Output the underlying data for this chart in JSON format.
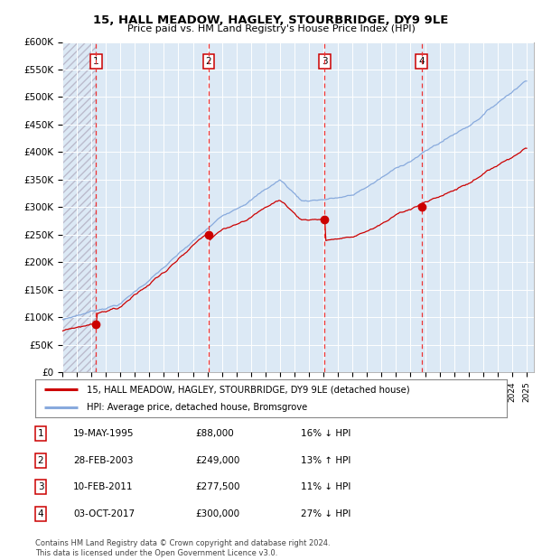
{
  "title": "15, HALL MEADOW, HAGLEY, STOURBRIDGE, DY9 9LE",
  "subtitle": "Price paid vs. HM Land Registry's House Price Index (HPI)",
  "plot_bg_color": "#dce9f5",
  "ylim": [
    0,
    600000
  ],
  "yticks": [
    0,
    50000,
    100000,
    150000,
    200000,
    250000,
    300000,
    350000,
    400000,
    450000,
    500000,
    550000,
    600000
  ],
  "ytick_labels": [
    "£0",
    "£50K",
    "£100K",
    "£150K",
    "£200K",
    "£250K",
    "£300K",
    "£350K",
    "£400K",
    "£450K",
    "£500K",
    "£550K",
    "£600K"
  ],
  "sale_prices": [
    88000,
    249000,
    277500,
    300000
  ],
  "sale_labels": [
    "1",
    "2",
    "3",
    "4"
  ],
  "legend_red": "15, HALL MEADOW, HAGLEY, STOURBRIDGE, DY9 9LE (detached house)",
  "legend_blue": "HPI: Average price, detached house, Bromsgrove",
  "table_rows": [
    {
      "num": "1",
      "date": "19-MAY-1995",
      "price": "£88,000",
      "hpi": "16% ↓ HPI"
    },
    {
      "num": "2",
      "date": "28-FEB-2003",
      "price": "£249,000",
      "hpi": "13% ↑ HPI"
    },
    {
      "num": "3",
      "date": "10-FEB-2011",
      "price": "£277,500",
      "hpi": "11% ↓ HPI"
    },
    {
      "num": "4",
      "date": "03-OCT-2017",
      "price": "£300,000",
      "hpi": "27% ↓ HPI"
    }
  ],
  "footer": "Contains HM Land Registry data © Crown copyright and database right 2024.\nThis data is licensed under the Open Government Licence v3.0.",
  "red_color": "#cc0000",
  "blue_color": "#88aadd",
  "dashed_color": "#ee3333",
  "hatch_color": "#bbbbcc"
}
